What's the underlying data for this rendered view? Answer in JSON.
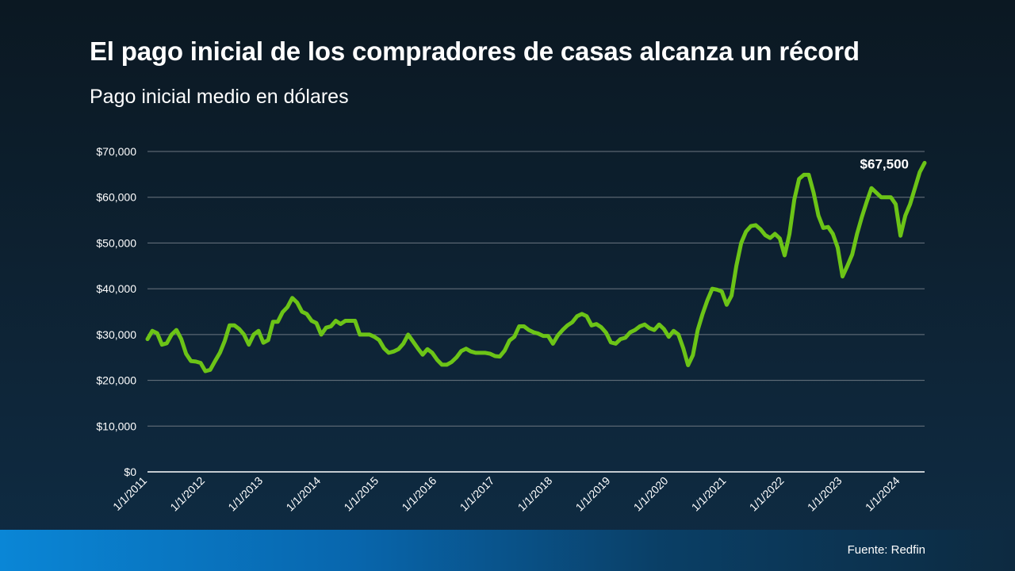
{
  "title": "El pago inicial de los compradores de casas alcanza un récord",
  "subtitle": "Pago inicial medio en dólares",
  "source": "Fuente: Redfin",
  "colors": {
    "line": "#6cc417",
    "grid": "#6b7680",
    "axis": "#ffffff",
    "text": "#ffffff"
  },
  "chart_data": {
    "type": "line",
    "title": "El pago inicial de los compradores de casas alcanza un récord",
    "ylabel": "",
    "xlabel": "",
    "ylim": [
      0,
      70000
    ],
    "xlim": [
      "2011-01",
      "2024-06"
    ],
    "grid": true,
    "legend": "none",
    "y_ticks": [
      {
        "value": 0,
        "label": "$0"
      },
      {
        "value": 10000,
        "label": "$10,000"
      },
      {
        "value": 20000,
        "label": "$20,000"
      },
      {
        "value": 30000,
        "label": "$30,000"
      },
      {
        "value": 40000,
        "label": "$40,000"
      },
      {
        "value": 50000,
        "label": "$50,000"
      },
      {
        "value": 60000,
        "label": "$60,000"
      },
      {
        "value": 70000,
        "label": "$70,000"
      }
    ],
    "x_ticks": [
      {
        "date": "2011-01",
        "label": "1/1/2011"
      },
      {
        "date": "2012-01",
        "label": "1/1/2012"
      },
      {
        "date": "2013-01",
        "label": "1/1/2013"
      },
      {
        "date": "2014-01",
        "label": "1/1/2014"
      },
      {
        "date": "2015-01",
        "label": "1/1/2015"
      },
      {
        "date": "2016-01",
        "label": "1/1/2016"
      },
      {
        "date": "2017-01",
        "label": "1/1/2017"
      },
      {
        "date": "2018-01",
        "label": "1/1/2018"
      },
      {
        "date": "2019-01",
        "label": "1/1/2019"
      },
      {
        "date": "2020-01",
        "label": "1/1/2020"
      },
      {
        "date": "2021-01",
        "label": "1/1/2021"
      },
      {
        "date": "2022-01",
        "label": "1/1/2022"
      },
      {
        "date": "2023-01",
        "label": "1/1/2023"
      },
      {
        "date": "2024-01",
        "label": "1/1/2024"
      }
    ],
    "series": [
      {
        "points": [
          [
            "2011-01",
            29000
          ],
          [
            "2011-02",
            30800
          ],
          [
            "2011-03",
            30300
          ],
          [
            "2011-04",
            27800
          ],
          [
            "2011-05",
            28100
          ],
          [
            "2011-06",
            30000
          ],
          [
            "2011-07",
            31000
          ],
          [
            "2011-08",
            29000
          ],
          [
            "2011-09",
            25800
          ],
          [
            "2011-10",
            24200
          ],
          [
            "2011-11",
            24100
          ],
          [
            "2011-12",
            23800
          ],
          [
            "2012-01",
            22000
          ],
          [
            "2012-02",
            22300
          ],
          [
            "2012-03",
            24200
          ],
          [
            "2012-04",
            26000
          ],
          [
            "2012-05",
            28600
          ],
          [
            "2012-06",
            32000
          ],
          [
            "2012-07",
            32000
          ],
          [
            "2012-08",
            31200
          ],
          [
            "2012-09",
            30000
          ],
          [
            "2012-10",
            27800
          ],
          [
            "2012-11",
            30000
          ],
          [
            "2012-12",
            30800
          ],
          [
            "2013-01",
            28200
          ],
          [
            "2013-02",
            28800
          ],
          [
            "2013-03",
            32800
          ],
          [
            "2013-04",
            32800
          ],
          [
            "2013-05",
            34900
          ],
          [
            "2013-06",
            36000
          ],
          [
            "2013-07",
            38000
          ],
          [
            "2013-08",
            37000
          ],
          [
            "2013-09",
            35000
          ],
          [
            "2013-10",
            34500
          ],
          [
            "2013-11",
            33000
          ],
          [
            "2013-12",
            32500
          ],
          [
            "2014-01",
            30000
          ],
          [
            "2014-02",
            31500
          ],
          [
            "2014-03",
            31800
          ],
          [
            "2014-04",
            33000
          ],
          [
            "2014-05",
            32300
          ],
          [
            "2014-06",
            33000
          ],
          [
            "2014-07",
            33000
          ],
          [
            "2014-08",
            33000
          ],
          [
            "2014-09",
            30000
          ],
          [
            "2014-10",
            30000
          ],
          [
            "2014-11",
            30000
          ],
          [
            "2014-12",
            29500
          ],
          [
            "2015-01",
            28800
          ],
          [
            "2015-02",
            27000
          ],
          [
            "2015-03",
            26000
          ],
          [
            "2015-04",
            26300
          ],
          [
            "2015-05",
            26800
          ],
          [
            "2015-06",
            28000
          ],
          [
            "2015-07",
            30000
          ],
          [
            "2015-08",
            28500
          ],
          [
            "2015-09",
            27000
          ],
          [
            "2015-10",
            25600
          ],
          [
            "2015-11",
            26800
          ],
          [
            "2015-12",
            26000
          ],
          [
            "2016-01",
            24500
          ],
          [
            "2016-02",
            23400
          ],
          [
            "2016-03",
            23400
          ],
          [
            "2016-04",
            24000
          ],
          [
            "2016-05",
            25000
          ],
          [
            "2016-06",
            26400
          ],
          [
            "2016-07",
            26900
          ],
          [
            "2016-08",
            26300
          ],
          [
            "2016-09",
            26000
          ],
          [
            "2016-10",
            26000
          ],
          [
            "2016-11",
            26000
          ],
          [
            "2016-12",
            25800
          ],
          [
            "2017-01",
            25300
          ],
          [
            "2017-02",
            25200
          ],
          [
            "2017-03",
            26500
          ],
          [
            "2017-04",
            28700
          ],
          [
            "2017-05",
            29500
          ],
          [
            "2017-06",
            31800
          ],
          [
            "2017-07",
            31800
          ],
          [
            "2017-08",
            31000
          ],
          [
            "2017-09",
            30500
          ],
          [
            "2017-10",
            30200
          ],
          [
            "2017-11",
            29700
          ],
          [
            "2017-12",
            29700
          ],
          [
            "2018-01",
            28000
          ],
          [
            "2018-02",
            29800
          ],
          [
            "2018-03",
            31000
          ],
          [
            "2018-04",
            32000
          ],
          [
            "2018-05",
            32700
          ],
          [
            "2018-06",
            34000
          ],
          [
            "2018-07",
            34500
          ],
          [
            "2018-08",
            34000
          ],
          [
            "2018-09",
            32000
          ],
          [
            "2018-10",
            32300
          ],
          [
            "2018-11",
            31600
          ],
          [
            "2018-12",
            30400
          ],
          [
            "2019-01",
            28300
          ],
          [
            "2019-02",
            28000
          ],
          [
            "2019-03",
            29000
          ],
          [
            "2019-04",
            29300
          ],
          [
            "2019-05",
            30500
          ],
          [
            "2019-06",
            31000
          ],
          [
            "2019-07",
            31800
          ],
          [
            "2019-08",
            32200
          ],
          [
            "2019-09",
            31400
          ],
          [
            "2019-10",
            31000
          ],
          [
            "2019-11",
            32200
          ],
          [
            "2019-12",
            31200
          ],
          [
            "2020-01",
            29500
          ],
          [
            "2020-02",
            30800
          ],
          [
            "2020-03",
            30000
          ],
          [
            "2020-04",
            27000
          ],
          [
            "2020-05",
            23300
          ],
          [
            "2020-06",
            25500
          ],
          [
            "2020-07",
            31000
          ],
          [
            "2020-08",
            34500
          ],
          [
            "2020-09",
            37500
          ],
          [
            "2020-10",
            40000
          ],
          [
            "2020-11",
            39800
          ],
          [
            "2020-12",
            39400
          ],
          [
            "2021-01",
            36500
          ],
          [
            "2021-02",
            38500
          ],
          [
            "2021-03",
            45000
          ],
          [
            "2021-04",
            50000
          ],
          [
            "2021-05",
            52500
          ],
          [
            "2021-06",
            53700
          ],
          [
            "2021-07",
            53900
          ],
          [
            "2021-08",
            53000
          ],
          [
            "2021-09",
            51700
          ],
          [
            "2021-10",
            51100
          ],
          [
            "2021-11",
            52000
          ],
          [
            "2021-12",
            51000
          ],
          [
            "2022-01",
            47300
          ],
          [
            "2022-02",
            52000
          ],
          [
            "2022-03",
            59500
          ],
          [
            "2022-04",
            64000
          ],
          [
            "2022-05",
            64900
          ],
          [
            "2022-06",
            64900
          ],
          [
            "2022-07",
            61000
          ],
          [
            "2022-08",
            56000
          ],
          [
            "2022-09",
            53300
          ],
          [
            "2022-10",
            53500
          ],
          [
            "2022-11",
            52000
          ],
          [
            "2022-12",
            49000
          ],
          [
            "2023-01",
            42700
          ],
          [
            "2023-02",
            45000
          ],
          [
            "2023-03",
            47500
          ],
          [
            "2023-04",
            52000
          ],
          [
            "2023-05",
            55700
          ],
          [
            "2023-06",
            59000
          ],
          [
            "2023-07",
            62000
          ],
          [
            "2023-08",
            61000
          ],
          [
            "2023-09",
            60000
          ],
          [
            "2023-10",
            60000
          ],
          [
            "2023-11",
            60000
          ],
          [
            "2023-12",
            58500
          ],
          [
            "2024-01",
            51600
          ],
          [
            "2024-02",
            56000
          ],
          [
            "2024-03",
            58500
          ],
          [
            "2024-04",
            62000
          ],
          [
            "2024-05",
            65500
          ],
          [
            "2024-06",
            67500
          ]
        ]
      }
    ],
    "annotations": [
      {
        "date": "2024-06",
        "value": 67500,
        "label": "$67,500"
      }
    ]
  }
}
